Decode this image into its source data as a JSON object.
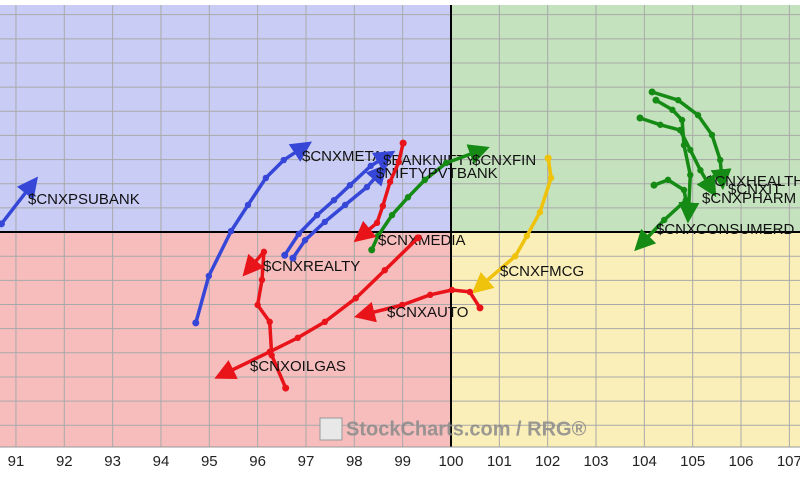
{
  "chart_data": {
    "type": "rrg",
    "watermark": "StockCharts.com / RRG®",
    "xlim": [
      90.67,
      107.22
    ],
    "ylim": [
      95.55,
      104.7
    ],
    "xticks": [
      91,
      92,
      93,
      94,
      95,
      96,
      97,
      98,
      99,
      100,
      101,
      102,
      103,
      104,
      105,
      106,
      107
    ],
    "yticks": [
      96,
      96.5,
      97,
      97.5,
      98,
      98.5,
      99,
      99.5,
      100,
      100.5,
      101,
      101.5,
      102,
      102.5,
      103,
      103.5,
      104,
      104.5
    ],
    "center": [
      100,
      100
    ],
    "grid": true,
    "series": [
      {
        "name": "$CNXPSUBANK",
        "color": "#3647d8",
        "x": [
          90.7,
          91.35
        ],
        "values": [
          100.17,
          101.01
        ]
      },
      {
        "name": "$CNXMETAL",
        "color": "#3647d8",
        "x": [
          94.72,
          94.99,
          95.45,
          95.8,
          96.17,
          96.54,
          96.98
        ],
        "values": [
          98.12,
          99.09,
          100.02,
          100.56,
          101.12,
          101.49,
          101.78
        ]
      },
      {
        "name": "$BANKNIFTY",
        "color": "#3647d8",
        "x": [
          96.56,
          96.85,
          97.23,
          97.58,
          97.91,
          98.34,
          98.7
        ],
        "values": [
          99.52,
          99.96,
          100.35,
          100.66,
          100.97,
          101.37,
          101.59
        ]
      },
      {
        "name": "$CNXFIN",
        "color": "#158a14",
        "x": [
          98.36,
          98.49,
          98.78,
          99.11,
          99.46,
          99.9,
          100.64
        ],
        "values": [
          99.63,
          99.92,
          100.35,
          100.72,
          101.08,
          101.43,
          101.7
        ]
      },
      {
        "name": "$NIFTYPVTBANK",
        "color": "#3647d8",
        "x": [
          96.73,
          96.98,
          97.39,
          97.81,
          98.26,
          98.57
        ],
        "values": [
          99.46,
          99.83,
          100.21,
          100.56,
          100.93,
          101.28
        ]
      },
      {
        "name": "$CNXMEDIA",
        "color": "#e8141a",
        "x": [
          99.01,
          98.92,
          98.74,
          98.59,
          98.47,
          98.12
        ],
        "values": [
          101.84,
          101.45,
          101.04,
          100.54,
          100.19,
          99.9
        ]
      },
      {
        "name": "$CNXREALTY",
        "color": "#e8141a",
        "x": [
          96.58,
          96.29,
          96.25,
          96.0,
          96.09,
          96.13,
          95.8
        ],
        "values": [
          96.77,
          97.45,
          98.14,
          98.49,
          99.01,
          99.59,
          99.21
        ]
      },
      {
        "name": "$CNXFMCG",
        "color": "#efc20c",
        "x": [
          102.01,
          102.07,
          101.84,
          101.57,
          101.33,
          100.56
        ],
        "values": [
          101.53,
          101.12,
          100.41,
          99.92,
          99.5,
          98.84
        ]
      },
      {
        "name": "$CNXAUTO",
        "color": "#e8141a",
        "x": [
          100.6,
          100.39,
          100.02,
          99.57,
          98.99,
          98.16
        ],
        "values": [
          98.43,
          98.76,
          98.8,
          98.7,
          98.49,
          98.28
        ]
      },
      {
        "name": "$CNXOILGAS",
        "color": "#e8141a",
        "x": [
          99.32,
          98.63,
          98.03,
          97.39,
          96.83,
          96.25,
          95.26
        ],
        "values": [
          99.88,
          99.21,
          98.63,
          98.14,
          97.81,
          97.52,
          97.04
        ]
      },
      {
        "name": "$CNXHEALTH",
        "color": "#158a14",
        "x": [
          104.16,
          104.7,
          105.11,
          105.4,
          105.57,
          105.61
        ],
        "values": [
          102.9,
          102.73,
          102.42,
          102.01,
          101.49,
          101.04
        ]
      },
      {
        "name": "$CNXIT",
        "color": "#158a14",
        "x": [
          103.91,
          104.33,
          104.74,
          104.95,
          105.16,
          105.4
        ],
        "values": [
          102.36,
          102.22,
          102.11,
          101.7,
          101.28,
          100.87
        ]
      },
      {
        "name": "$CNXPHARM",
        "color": "#158a14",
        "x": [
          104.24,
          104.58,
          104.78,
          104.82,
          104.95,
          104.91
        ],
        "values": [
          102.73,
          102.53,
          102.32,
          101.8,
          101.18,
          100.35
        ]
      },
      {
        "name": "$CNXCONSUMERD",
        "color": "#158a14",
        "x": [
          104.2,
          104.49,
          104.82,
          104.86,
          104.41,
          103.91
        ],
        "values": [
          100.97,
          101.08,
          100.87,
          100.66,
          100.25,
          99.73
        ]
      }
    ]
  }
}
